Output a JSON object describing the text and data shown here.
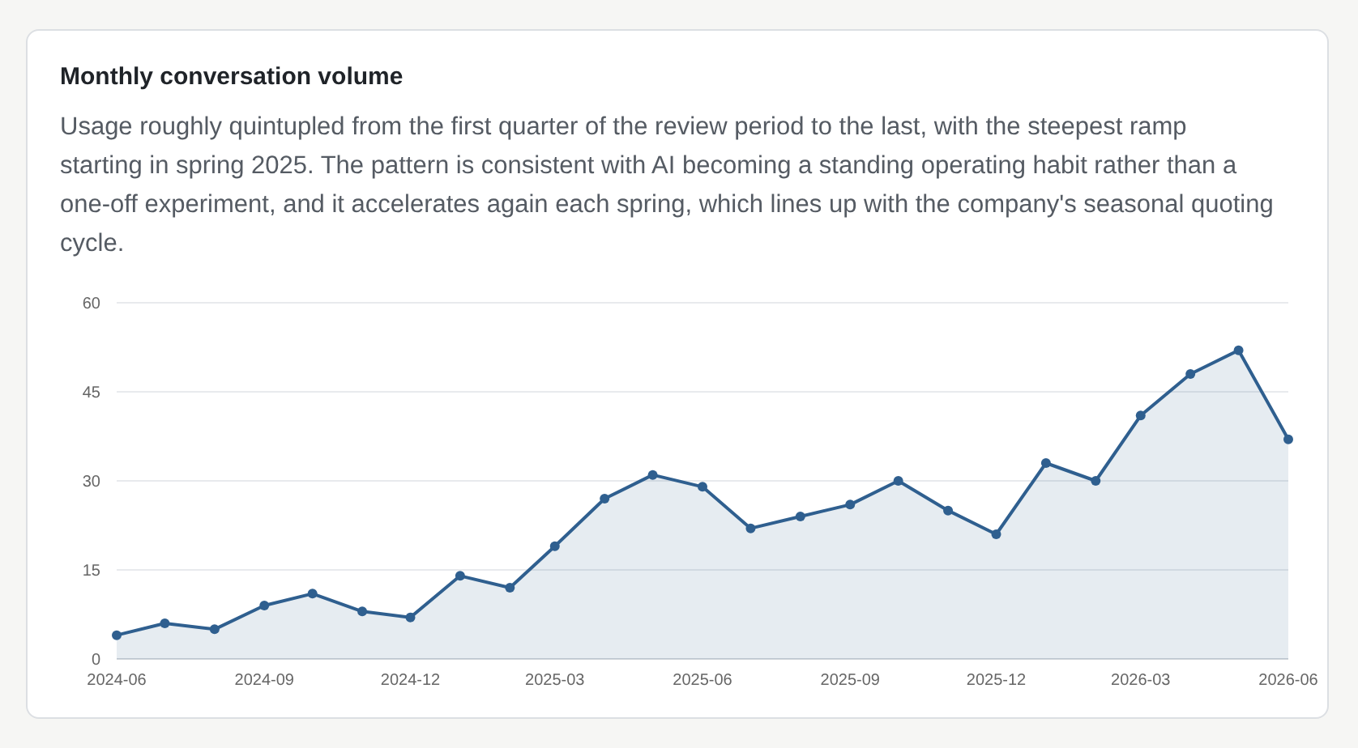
{
  "chart_data": {
    "type": "area",
    "title": "Monthly conversation volume",
    "subtitle": "Usage roughly quintupled from the first quarter of the review period to the last, with the steepest ramp starting in spring 2025. The pattern is consistent with AI becoming a standing operating habit rather than a one-off experiment, and it accelerates again each spring, which lines up with the company's seasonal quoting cycle.",
    "x": [
      "2024-06",
      "2024-07",
      "2024-08",
      "2024-09",
      "2024-10",
      "2024-11",
      "2024-12",
      "2025-01",
      "2025-02",
      "2025-03",
      "2025-04",
      "2025-05",
      "2025-06",
      "2025-07",
      "2025-08",
      "2025-09",
      "2025-10",
      "2025-11",
      "2025-12",
      "2026-01",
      "2026-02",
      "2026-03",
      "2026-04",
      "2026-05",
      "2026-06"
    ],
    "series": [
      {
        "color": "#2f5f8f",
        "values": [
          4,
          6,
          5,
          9,
          11,
          8,
          7,
          14,
          12,
          19,
          27,
          31,
          29,
          22,
          24,
          26,
          30,
          25,
          21,
          33,
          30,
          41,
          48,
          52,
          37
        ]
      }
    ],
    "xlim": [
      "2024-06",
      "2026-06"
    ],
    "xticks": [
      {
        "value": "2024-06",
        "label": "2024-06"
      },
      {
        "value": "2024-09",
        "label": "2024-09"
      },
      {
        "value": "2024-12",
        "label": "2024-12"
      },
      {
        "value": "2025-03",
        "label": "2025-03"
      },
      {
        "value": "2025-06",
        "label": "2025-06"
      },
      {
        "value": "2025-09",
        "label": "2025-09"
      },
      {
        "value": "2025-12",
        "label": "2025-12"
      },
      {
        "value": "2026-03",
        "label": "2026-03"
      },
      {
        "value": "2026-06",
        "label": "2026-06"
      }
    ],
    "ylim": [
      0,
      60
    ],
    "yticks": [
      0,
      15,
      30,
      45,
      60
    ],
    "grid": "y",
    "marker": "circle"
  }
}
